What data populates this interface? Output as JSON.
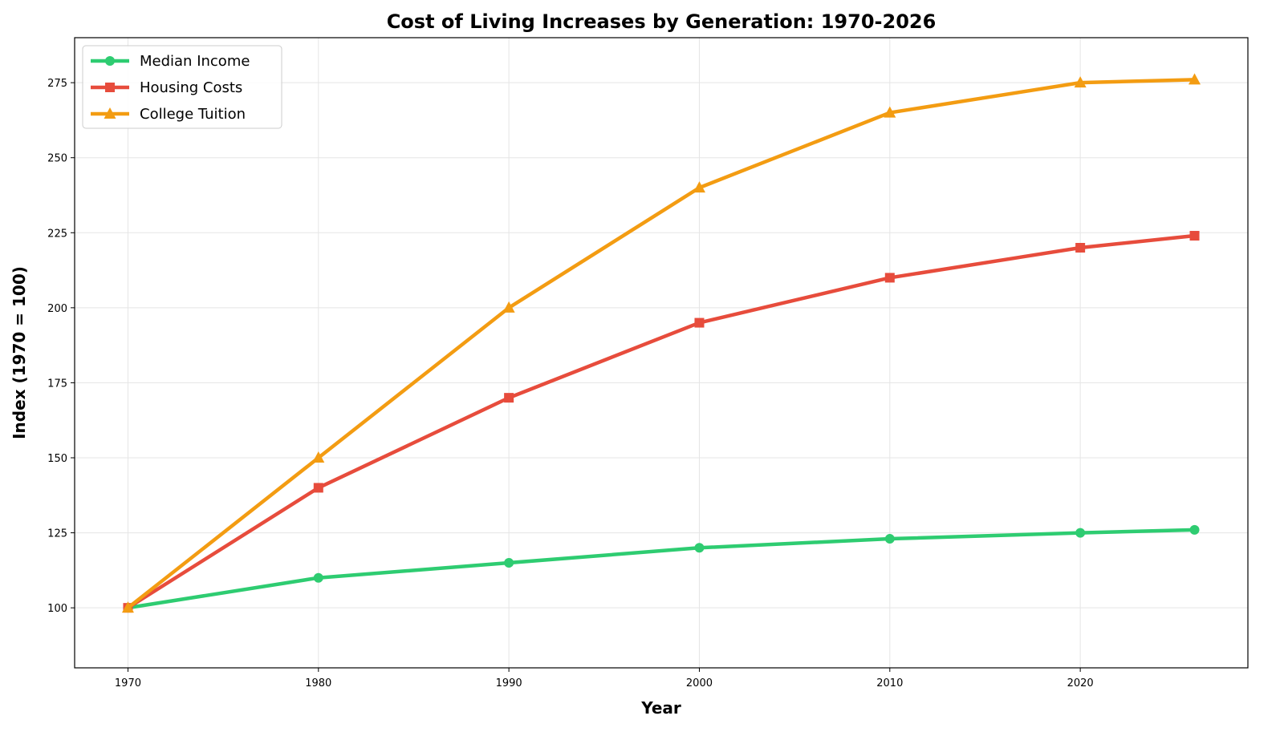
{
  "chart_data": {
    "type": "line",
    "title": "Cost of Living Increases by Generation: 1970-2026",
    "xlabel": "Year",
    "ylabel": "Index (1970 = 100)",
    "x": [
      1970,
      1980,
      1990,
      2000,
      2010,
      2020,
      2026
    ],
    "xlim": [
      1967.2,
      2028.8
    ],
    "ylim": [
      80,
      290
    ],
    "xticks": [
      1970,
      1980,
      1990,
      2000,
      2010,
      2020
    ],
    "yticks": [
      100,
      125,
      150,
      175,
      200,
      225,
      250,
      275
    ],
    "grid": true,
    "legend_position": "top-left",
    "series": [
      {
        "name": "Median Income",
        "values": [
          100,
          110,
          115,
          120,
          123,
          125,
          126
        ],
        "color": "#2ecc71",
        "marker": "circle"
      },
      {
        "name": "Housing Costs",
        "values": [
          100,
          140,
          170,
          195,
          210,
          220,
          224
        ],
        "color": "#e74c3c",
        "marker": "square"
      },
      {
        "name": "College Tuition",
        "values": [
          100,
          150,
          200,
          240,
          265,
          275,
          276
        ],
        "color": "#f39c12",
        "marker": "triangle"
      }
    ]
  }
}
